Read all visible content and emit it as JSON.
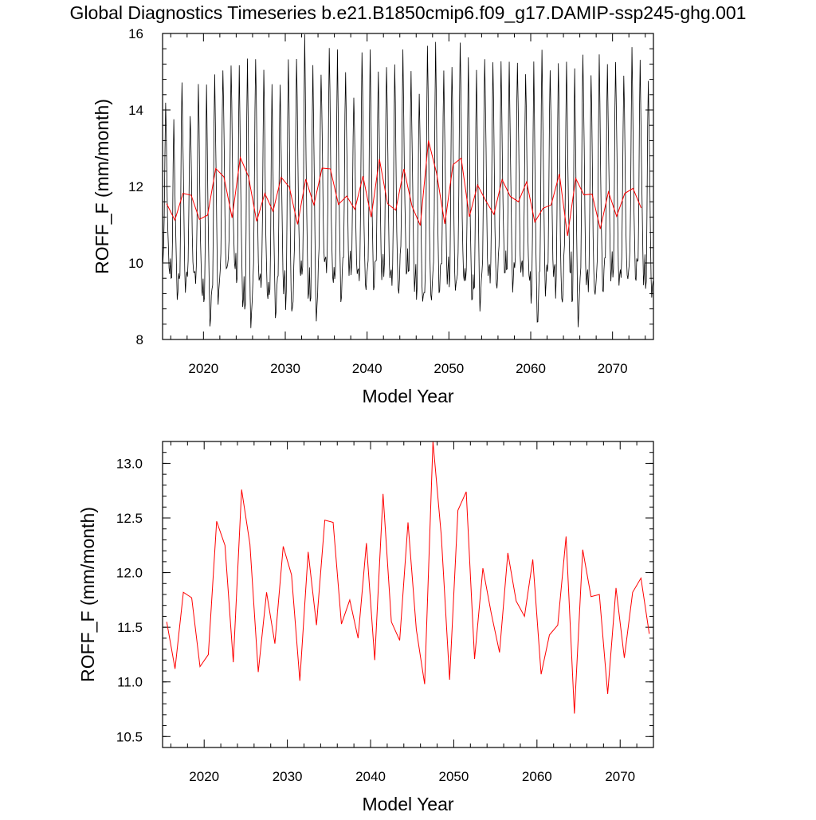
{
  "page": {
    "title": "Global Diagnostics Timeseries b.e21.B1850cmip6.f09_g17.DAMIP-ssp245-ghg.001"
  },
  "colors": {
    "monthly": "#000000",
    "annual": "#ff0000"
  },
  "chart_data": [
    {
      "type": "line",
      "title": "Global Diagnostics Timeseries b.e21.B1850cmip6.f09_g17.DAMIP-ssp245-ghg.001",
      "xlabel": "Model Year",
      "ylabel": "ROFF_F (mm/month)",
      "xlim": [
        2015,
        2075
      ],
      "ylim": [
        8,
        16
      ],
      "xticks": [
        2020,
        2030,
        2040,
        2050,
        2060,
        2070
      ],
      "xtick_labels": [
        "2020",
        "2030",
        "2040",
        "2050",
        "2060",
        "2070"
      ],
      "yticks": [
        8,
        10,
        12,
        14,
        16
      ],
      "ytick_labels": [
        "8",
        "10",
        "12",
        "14",
        "16"
      ],
      "grid": false,
      "series": [
        {
          "resolution": "monthly",
          "color": "#000000",
          "note_seasonal_cycle": "monthly values oscillate each year between a minimum near 9-10 and a maximum near 14-15.8",
          "annual_min": [
            9.8,
            9.2,
            9.3,
            9.6,
            9.2,
            8.5,
            9.0,
            9.7,
            9.9,
            9.0,
            8.4,
            9.4,
            9.1,
            8.7,
            9.3,
            8.6,
            9.7,
            9.2,
            8.6,
            9.9,
            9.5,
            9.1,
            9.8,
            9.6,
            9.3,
            9.4,
            9.7,
            9.5,
            9.2,
            9.8,
            9.4,
            8.9,
            9.0,
            9.3,
            9.6,
            9.2,
            9.5,
            9.1,
            8.9,
            9.6,
            9.3,
            9.8,
            9.4,
            9.7,
            9.5,
            8.5,
            9.3,
            9.6,
            8.9,
            9.8,
            8.5,
            9.4,
            9.1,
            9.3,
            9.7,
            9.4,
            9.5,
            9.6,
            9.6,
            9.1
          ],
          "annual_max": [
            14.1,
            13.6,
            14.8,
            14.0,
            14.6,
            14.5,
            15.0,
            15.2,
            15.1,
            15.0,
            15.4,
            15.5,
            15.0,
            14.5,
            14.7,
            15.5,
            15.3,
            15.8,
            15.2,
            15.1,
            15.6,
            15.4,
            15.0,
            14.5,
            15.5,
            15.4,
            15.0,
            15.3,
            15.2,
            15.4,
            15.0,
            14.6,
            15.7,
            15.6,
            15.0,
            15.3,
            15.8,
            15.2,
            15.0,
            15.5,
            15.3,
            15.1,
            15.2,
            15.4,
            15.0,
            15.1,
            15.5,
            15.2,
            15.3,
            15.1,
            15.0,
            15.6,
            15.0,
            15.3,
            15.1,
            15.4,
            15.0,
            15.5,
            15.2,
            14.9
          ]
        },
        {
          "resolution": "annual",
          "color": "#ff0000",
          "x": [
            2015.5,
            2016.5,
            2017.5,
            2018.5,
            2019.5,
            2020.5,
            2021.5,
            2022.5,
            2023.5,
            2024.5,
            2025.5,
            2026.5,
            2027.5,
            2028.5,
            2029.5,
            2030.5,
            2031.5,
            2032.5,
            2033.5,
            2034.5,
            2035.5,
            2036.5,
            2037.5,
            2038.5,
            2039.5,
            2040.5,
            2041.5,
            2042.5,
            2043.5,
            2044.5,
            2045.5,
            2046.5,
            2047.5,
            2048.5,
            2049.5,
            2050.5,
            2051.5,
            2052.5,
            2053.5,
            2054.5,
            2055.5,
            2056.5,
            2057.5,
            2058.5,
            2059.5,
            2060.5,
            2061.5,
            2062.5,
            2063.5,
            2064.5,
            2065.5,
            2066.5,
            2067.5,
            2068.5,
            2069.5,
            2070.5,
            2071.5,
            2072.5,
            2073.5
          ],
          "values": [
            11.55,
            11.12,
            11.82,
            11.77,
            11.14,
            11.25,
            12.47,
            12.25,
            11.18,
            12.76,
            12.26,
            11.09,
            11.82,
            11.35,
            12.24,
            11.98,
            11.01,
            12.19,
            11.52,
            12.48,
            12.46,
            11.53,
            11.75,
            11.4,
            12.27,
            11.2,
            12.72,
            11.55,
            11.38,
            12.46,
            11.48,
            10.98,
            13.2,
            12.34,
            11.02,
            12.57,
            12.74,
            11.21,
            12.04,
            11.63,
            11.27,
            12.18,
            11.74,
            11.6,
            12.12,
            11.07,
            11.43,
            11.52,
            12.33,
            10.71,
            12.21,
            11.78,
            11.8,
            10.89,
            11.86,
            11.22,
            11.82,
            11.95,
            11.44
          ]
        }
      ]
    },
    {
      "type": "line",
      "title": "",
      "xlabel": "Model Year",
      "ylabel": "ROFF_F (mm/month)",
      "xlim": [
        2015,
        2074
      ],
      "ylim": [
        10.4,
        13.2
      ],
      "xticks": [
        2020,
        2030,
        2040,
        2050,
        2060,
        2070
      ],
      "xtick_labels": [
        "2020",
        "2030",
        "2040",
        "2050",
        "2060",
        "2070"
      ],
      "yticks": [
        10.5,
        11.0,
        11.5,
        12.0,
        12.5,
        13.0
      ],
      "ytick_labels": [
        "10.5",
        "11.0",
        "11.5",
        "12.0",
        "12.5",
        "13.0"
      ],
      "grid": false,
      "series": [
        {
          "resolution": "annual",
          "color": "#ff0000",
          "x": [
            2015.5,
            2016.5,
            2017.5,
            2018.5,
            2019.5,
            2020.5,
            2021.5,
            2022.5,
            2023.5,
            2024.5,
            2025.5,
            2026.5,
            2027.5,
            2028.5,
            2029.5,
            2030.5,
            2031.5,
            2032.5,
            2033.5,
            2034.5,
            2035.5,
            2036.5,
            2037.5,
            2038.5,
            2039.5,
            2040.5,
            2041.5,
            2042.5,
            2043.5,
            2044.5,
            2045.5,
            2046.5,
            2047.5,
            2048.5,
            2049.5,
            2050.5,
            2051.5,
            2052.5,
            2053.5,
            2054.5,
            2055.5,
            2056.5,
            2057.5,
            2058.5,
            2059.5,
            2060.5,
            2061.5,
            2062.5,
            2063.5,
            2064.5,
            2065.5,
            2066.5,
            2067.5,
            2068.5,
            2069.5,
            2070.5,
            2071.5,
            2072.5,
            2073.5
          ],
          "values": [
            11.55,
            11.12,
            11.82,
            11.77,
            11.14,
            11.25,
            12.47,
            12.25,
            11.18,
            12.76,
            12.26,
            11.09,
            11.82,
            11.35,
            12.24,
            11.98,
            11.01,
            12.19,
            11.52,
            12.48,
            12.46,
            11.53,
            11.75,
            11.4,
            12.27,
            11.2,
            12.72,
            11.55,
            11.38,
            12.46,
            11.48,
            10.98,
            13.2,
            12.34,
            11.02,
            12.57,
            12.74,
            11.21,
            12.04,
            11.63,
            11.27,
            12.18,
            11.74,
            11.6,
            12.12,
            11.07,
            11.43,
            11.52,
            12.33,
            10.71,
            12.21,
            11.78,
            11.8,
            10.89,
            11.86,
            11.22,
            11.82,
            11.95,
            11.44
          ]
        }
      ]
    }
  ]
}
